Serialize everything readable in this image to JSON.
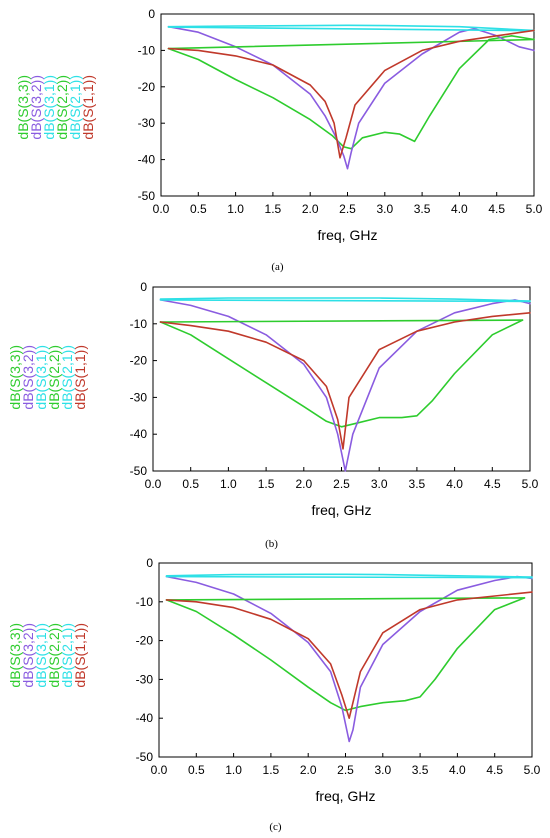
{
  "chart_data": [
    {
      "type": "line",
      "caption": "(a)",
      "xlabel": "freq, GHz",
      "ylabel": "",
      "xlim": [
        0.0,
        5.0
      ],
      "ylim": [
        -50,
        0
      ],
      "xticks": [
        "0.0",
        "0.5",
        "1.0",
        "1.5",
        "2.0",
        "2.5",
        "3.0",
        "3.5",
        "4.0",
        "4.5",
        "5.0"
      ],
      "yticks": [
        "0",
        "-10",
        "-20",
        "-30",
        "-40",
        "-50"
      ],
      "grid": false,
      "legend_position": "left, rotated vertical",
      "series": [
        {
          "name": "dB(S(3,3))",
          "color": "#2ecc2e",
          "x": [
            0.1,
            0.5,
            1.0,
            1.5,
            2.0,
            2.3,
            2.45,
            2.55,
            2.7,
            3.0,
            3.2,
            3.4,
            3.6,
            4.0,
            4.4,
            4.7,
            5.0
          ],
          "y": [
            -9.5,
            -12.5,
            -18,
            -23,
            -29,
            -33.5,
            -36.5,
            -37,
            -34,
            -32.5,
            -33,
            -35,
            -28,
            -15,
            -7,
            -6,
            -7
          ]
        },
        {
          "name": "dB(S(3,2))",
          "color": "#8a5ce0",
          "x": [
            0.1,
            0.5,
            1.0,
            1.5,
            2.0,
            2.2,
            2.35,
            2.45,
            2.5,
            2.55,
            2.65,
            3.0,
            3.5,
            4.0,
            4.2,
            4.5,
            4.8,
            5.0
          ],
          "y": [
            -3.5,
            -5,
            -9,
            -14,
            -22,
            -28,
            -34,
            -39,
            -42.5,
            -38,
            -30,
            -19,
            -11,
            -5,
            -4,
            -6,
            -9,
            -10
          ]
        },
        {
          "name": "dB(S(3,1))",
          "color": "#2ee0e6",
          "x": [
            0.1,
            1.0,
            2.0,
            2.5,
            3.0,
            4.0,
            4.5,
            5.0
          ],
          "y": [
            -3.5,
            -3.3,
            -3.2,
            -3.1,
            -3.2,
            -3.5,
            -4.0,
            -4.5
          ]
        },
        {
          "name": "dB(S(2,2))",
          "color": "#2ecc2e",
          "x": [
            0.1,
            5.0
          ],
          "y": [
            -9.5,
            -7
          ]
        },
        {
          "name": "dB(S(2,1))",
          "color": "#2ee0e6",
          "x": [
            0.1,
            5.0
          ],
          "y": [
            -3.6,
            -4.6
          ]
        },
        {
          "name": "dB(S(1,1))",
          "color": "#c0392b",
          "x": [
            0.1,
            0.5,
            1.0,
            1.5,
            2.0,
            2.2,
            2.32,
            2.4,
            2.48,
            2.6,
            3.0,
            3.5,
            4.0,
            4.5,
            5.0
          ],
          "y": [
            -9.5,
            -10,
            -11.5,
            -14,
            -19.5,
            -24,
            -30,
            -39.5,
            -34,
            -25,
            -15.5,
            -10,
            -7.5,
            -6,
            -4.5
          ]
        }
      ]
    },
    {
      "type": "line",
      "caption": "(b)",
      "xlabel": "freq, GHz",
      "ylabel": "",
      "xlim": [
        0.0,
        5.0
      ],
      "ylim": [
        -50,
        0
      ],
      "xticks": [
        "0.0",
        "0.5",
        "1.0",
        "1.5",
        "2.0",
        "2.5",
        "3.0",
        "3.5",
        "4.0",
        "4.5",
        "5.0"
      ],
      "yticks": [
        "0",
        "-10",
        "-20",
        "-30",
        "-40",
        "-50"
      ],
      "grid": false,
      "legend_position": "left, rotated vertical",
      "series": [
        {
          "name": "dB(S(3,3))",
          "color": "#2ecc2e",
          "x": [
            0.1,
            0.5,
            1.0,
            1.5,
            2.0,
            2.3,
            2.5,
            2.7,
            3.0,
            3.3,
            3.5,
            3.7,
            4.0,
            4.5,
            4.9
          ],
          "y": [
            -9.5,
            -13,
            -19.5,
            -26,
            -32.5,
            -36.5,
            -38,
            -37,
            -35.5,
            -35.5,
            -35,
            -31,
            -23.5,
            -13,
            -9
          ]
        },
        {
          "name": "dB(S(3,2))",
          "color": "#8a5ce0",
          "x": [
            0.1,
            0.5,
            1.0,
            1.5,
            2.0,
            2.3,
            2.45,
            2.55,
            2.65,
            3.0,
            3.5,
            4.0,
            4.5,
            4.8,
            5.0
          ],
          "y": [
            -3.5,
            -5,
            -8,
            -13,
            -21,
            -30,
            -40,
            -50,
            -40,
            -22,
            -12,
            -7,
            -4.5,
            -3.5,
            -4.5
          ]
        },
        {
          "name": "dB(S(3,1))",
          "color": "#2ee0e6",
          "x": [
            0.1,
            1.0,
            2.0,
            2.5,
            3.0,
            4.0,
            5.0
          ],
          "y": [
            -3.3,
            -3.0,
            -3.0,
            -3.0,
            -3.0,
            -3.3,
            -3.8
          ]
        },
        {
          "name": "dB(S(2,2))",
          "color": "#2ecc2e",
          "x": [
            0.1,
            4.9
          ],
          "y": [
            -9.5,
            -9
          ]
        },
        {
          "name": "dB(S(2,1))",
          "color": "#2ee0e6",
          "x": [
            0.1,
            5.0
          ],
          "y": [
            -3.5,
            -3.9
          ]
        },
        {
          "name": "dB(S(1,1))",
          "color": "#c0392b",
          "x": [
            0.1,
            0.5,
            1.0,
            1.5,
            2.0,
            2.3,
            2.45,
            2.52,
            2.6,
            3.0,
            3.5,
            4.0,
            4.5,
            5.0
          ],
          "y": [
            -9.5,
            -10.5,
            -12,
            -15,
            -20,
            -27,
            -36,
            -44,
            -30,
            -17,
            -12,
            -9.5,
            -8,
            -7
          ]
        }
      ]
    },
    {
      "type": "line",
      "caption": "(c)",
      "xlabel": "freq, GHz",
      "ylabel": "",
      "xlim": [
        0.0,
        5.0
      ],
      "ylim": [
        -50,
        0
      ],
      "xticks": [
        "0.0",
        "0.5",
        "1.0",
        "1.5",
        "2.0",
        "2.5",
        "3.0",
        "3.5",
        "4.0",
        "4.5",
        "5.0"
      ],
      "yticks": [
        "0",
        "-10",
        "-20",
        "-30",
        "-40",
        "-50"
      ],
      "grid": false,
      "legend_position": "left, rotated vertical",
      "series": [
        {
          "name": "dB(S(3,3))",
          "color": "#2ecc2e",
          "x": [
            0.1,
            0.5,
            1.0,
            1.5,
            2.0,
            2.3,
            2.5,
            2.7,
            3.0,
            3.3,
            3.5,
            3.7,
            4.0,
            4.5,
            4.9
          ],
          "y": [
            -9.5,
            -12.5,
            -18.5,
            -25,
            -32,
            -36,
            -38,
            -37,
            -36,
            -35.5,
            -34.5,
            -30,
            -22,
            -12,
            -9
          ]
        },
        {
          "name": "dB(S(3,2))",
          "color": "#8a5ce0",
          "x": [
            0.1,
            0.5,
            1.0,
            1.5,
            2.0,
            2.3,
            2.45,
            2.55,
            2.6,
            2.7,
            3.0,
            3.5,
            4.0,
            4.5,
            4.8,
            5.0
          ],
          "y": [
            -3.5,
            -5,
            -8,
            -13,
            -20.5,
            -28,
            -37,
            -46,
            -43,
            -32,
            -21,
            -12.5,
            -7,
            -4.5,
            -3.5,
            -4
          ]
        },
        {
          "name": "dB(S(3,1))",
          "color": "#2ee0e6",
          "x": [
            0.1,
            1.0,
            2.0,
            2.5,
            3.0,
            4.0,
            5.0
          ],
          "y": [
            -3.3,
            -3.0,
            -2.9,
            -2.9,
            -3.0,
            -3.3,
            -3.6
          ]
        },
        {
          "name": "dB(S(2,2))",
          "color": "#2ecc2e",
          "x": [
            0.1,
            4.9
          ],
          "y": [
            -9.5,
            -9
          ]
        },
        {
          "name": "dB(S(2,1))",
          "color": "#2ee0e6",
          "x": [
            0.1,
            5.0
          ],
          "y": [
            -3.5,
            -3.8
          ]
        },
        {
          "name": "dB(S(1,1))",
          "color": "#c0392b",
          "x": [
            0.1,
            0.5,
            1.0,
            1.5,
            2.0,
            2.3,
            2.45,
            2.55,
            2.7,
            3.0,
            3.5,
            4.0,
            4.5,
            5.0
          ],
          "y": [
            -9.5,
            -10,
            -11.5,
            -14.5,
            -19.5,
            -26,
            -34,
            -40,
            -28,
            -18,
            -12,
            -9.5,
            -8.5,
            -7.5
          ]
        }
      ]
    }
  ]
}
